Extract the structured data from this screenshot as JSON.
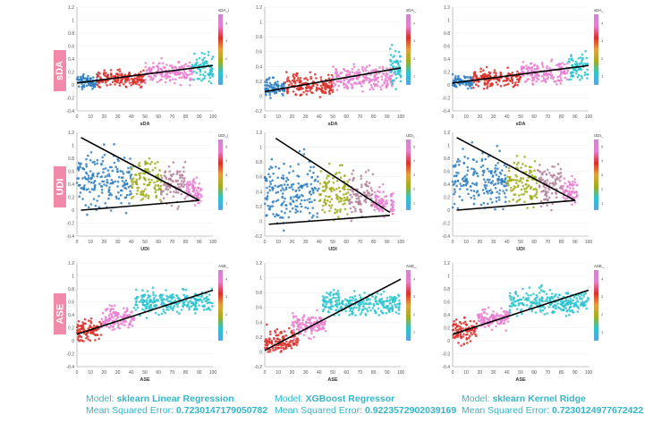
{
  "row_labels": [
    "sDA",
    "UDI",
    "ASE"
  ],
  "captions": [
    {
      "model_prefix": "Model: ",
      "model_name": "sklearn Linear Regression",
      "mse_prefix": "Mean Squared Error: ",
      "mse_value": "0.7230147179050782"
    },
    {
      "model_prefix": "Model: ",
      "model_name": "XGBoost Regressor",
      "mse_prefix": "Mean Squared Error: ",
      "mse_value": "0.9223572902039169"
    },
    {
      "model_prefix": "Model: ",
      "model_name": "sklearn Kernel Ridge",
      "mse_prefix": "Mean Squared Error: ",
      "mse_value": "0.7230124977672422"
    }
  ],
  "colors": {
    "cluster_blue": "#2f7fbf",
    "cluster_red": "#d9302b",
    "cluster_pink": "#e77fd0",
    "cluster_cyan": "#2cc4cf",
    "cluster_olive": "#9fae1c",
    "cluster_mauve": "#b5829c",
    "fit_line": "#000000",
    "caption": "#35b5c8",
    "row_label_bg": "#f08aa8"
  },
  "chart_data": [
    {
      "id": "sda-linear",
      "type": "scatter",
      "row": 0,
      "col": 0,
      "xlabel": "sDA",
      "legend_title": "sDA_i",
      "legend_ticks": [
        "1",
        "2",
        "3",
        "4"
      ],
      "xlim": [
        0,
        100
      ],
      "ylim": [
        -0.4,
        1.2
      ],
      "xticks": [
        0,
        10,
        20,
        30,
        40,
        50,
        60,
        70,
        80,
        90,
        100
      ],
      "yticks": [
        -0.4,
        -0.2,
        0,
        0.2,
        0.4,
        0.6,
        0.8,
        1,
        1.2
      ],
      "clusters": [
        {
          "color": "cluster_blue",
          "x": [
            0,
            15
          ],
          "yc": 0.05,
          "spread": 0.1
        },
        {
          "color": "cluster_red",
          "x": [
            15,
            50
          ],
          "yc": 0.1,
          "spread": 0.12
        },
        {
          "color": "cluster_pink",
          "x": [
            50,
            85
          ],
          "yc": 0.2,
          "spread": 0.16
        },
        {
          "color": "cluster_cyan",
          "x": [
            85,
            100
          ],
          "yc": 0.25,
          "spread": 0.22
        }
      ],
      "lines": [
        {
          "x": [
            0,
            100
          ],
          "y": [
            0.03,
            0.3
          ]
        }
      ]
    },
    {
      "id": "sda-xgb",
      "type": "scatter",
      "row": 0,
      "col": 1,
      "xlabel": "sDA",
      "legend_title": "sDA_",
      "legend_ticks": [
        "1",
        "2",
        "3",
        "4"
      ],
      "xlim": [
        0,
        100
      ],
      "ylim": [
        -0.2,
        1.2
      ],
      "xticks": [
        0,
        10,
        20,
        30,
        40,
        50,
        60,
        70,
        80,
        90,
        100
      ],
      "yticks": [
        -0.2,
        0,
        0.2,
        0.4,
        0.6,
        0.8,
        1,
        1.2
      ],
      "clusters": [
        {
          "color": "cluster_blue",
          "x": [
            0,
            15
          ],
          "yc": 0.1,
          "spread": 0.12
        },
        {
          "color": "cluster_red",
          "x": [
            15,
            50
          ],
          "yc": 0.15,
          "spread": 0.14
        },
        {
          "color": "cluster_pink",
          "x": [
            50,
            95
          ],
          "yc": 0.25,
          "spread": 0.16
        },
        {
          "color": "cluster_cyan",
          "x": [
            92,
            100
          ],
          "yc": 0.4,
          "spread": 0.3
        }
      ],
      "lines": [
        {
          "x": [
            0,
            100
          ],
          "y": [
            0.06,
            0.38
          ]
        }
      ]
    },
    {
      "id": "sda-kernel",
      "type": "scatter",
      "row": 0,
      "col": 2,
      "xlabel": "sDA",
      "legend_title": "sDA_",
      "legend_ticks": [
        "1",
        "2",
        "3",
        "4"
      ],
      "xlim": [
        0,
        100
      ],
      "ylim": [
        -0.4,
        1.2
      ],
      "xticks": [
        0,
        10,
        20,
        30,
        40,
        50,
        60,
        70,
        80,
        90,
        100
      ],
      "yticks": [
        -0.4,
        -0.2,
        0,
        0.2,
        0.4,
        0.6,
        0.8,
        1,
        1.2
      ],
      "clusters": [
        {
          "color": "cluster_blue",
          "x": [
            0,
            15
          ],
          "yc": 0.05,
          "spread": 0.1
        },
        {
          "color": "cluster_red",
          "x": [
            15,
            50
          ],
          "yc": 0.1,
          "spread": 0.12
        },
        {
          "color": "cluster_pink",
          "x": [
            50,
            85
          ],
          "yc": 0.2,
          "spread": 0.16
        },
        {
          "color": "cluster_cyan",
          "x": [
            85,
            100
          ],
          "yc": 0.25,
          "spread": 0.22
        }
      ],
      "lines": [
        {
          "x": [
            0,
            100
          ],
          "y": [
            0.03,
            0.3
          ]
        }
      ]
    },
    {
      "id": "udi-linear",
      "type": "scatter",
      "row": 1,
      "col": 0,
      "xlabel": "UDI",
      "legend_title": "UDI_i",
      "legend_ticks": [
        "1",
        "2",
        "3",
        "4",
        "5"
      ],
      "xlim": [
        0,
        100
      ],
      "ylim": [
        -0.4,
        1.2
      ],
      "xticks": [
        0,
        10,
        20,
        30,
        40,
        50,
        60,
        70,
        80,
        90,
        100
      ],
      "yticks": [
        -0.4,
        -0.2,
        0,
        0.2,
        0.4,
        0.6,
        0.8,
        1,
        1.2
      ],
      "clusters": [
        {
          "color": "cluster_blue",
          "x": [
            0,
            40
          ],
          "yc": 0.45,
          "spread": 0.4
        },
        {
          "color": "cluster_olive",
          "x": [
            40,
            62
          ],
          "yc": 0.45,
          "spread": 0.35
        },
        {
          "color": "cluster_mauve",
          "x": [
            62,
            80
          ],
          "yc": 0.4,
          "spread": 0.3
        },
        {
          "color": "cluster_pink",
          "x": [
            80,
            92
          ],
          "yc": 0.3,
          "spread": 0.2
        }
      ],
      "lines": [
        {
          "x": [
            3,
            90
          ],
          "y": [
            1.12,
            0.15
          ]
        },
        {
          "x": [
            3,
            90
          ],
          "y": [
            0.0,
            0.15
          ]
        }
      ]
    },
    {
      "id": "udi-xgb",
      "type": "scatter",
      "row": 1,
      "col": 1,
      "xlabel": "UDI",
      "legend_title": "UDI_",
      "legend_ticks": [
        "1",
        "2",
        "3",
        "4",
        "5"
      ],
      "xlim": [
        0,
        100
      ],
      "ylim": [
        -0.2,
        1.2
      ],
      "xticks": [
        0,
        10,
        20,
        30,
        40,
        50,
        60,
        70,
        80,
        90,
        100
      ],
      "yticks": [
        -0.2,
        0,
        0.2,
        0.4,
        0.6,
        0.8,
        1,
        1.2
      ],
      "clusters": [
        {
          "color": "cluster_blue",
          "x": [
            0,
            40
          ],
          "yc": 0.4,
          "spread": 0.4
        },
        {
          "color": "cluster_olive",
          "x": [
            40,
            62
          ],
          "yc": 0.4,
          "spread": 0.35
        },
        {
          "color": "cluster_mauve",
          "x": [
            62,
            80
          ],
          "yc": 0.35,
          "spread": 0.3
        },
        {
          "color": "cluster_pink",
          "x": [
            80,
            95
          ],
          "yc": 0.25,
          "spread": 0.2
        }
      ],
      "lines": [
        {
          "x": [
            8,
            92
          ],
          "y": [
            1.12,
            0.12
          ]
        },
        {
          "x": [
            3,
            92
          ],
          "y": [
            -0.04,
            0.08
          ]
        }
      ]
    },
    {
      "id": "udi-kernel",
      "type": "scatter",
      "row": 1,
      "col": 2,
      "xlabel": "UDI",
      "legend_title": "UDI_",
      "legend_ticks": [
        "1",
        "2",
        "3",
        "4",
        "5"
      ],
      "xlim": [
        0,
        100
      ],
      "ylim": [
        -0.4,
        1.2
      ],
      "xticks": [
        0,
        10,
        20,
        30,
        40,
        50,
        60,
        70,
        80,
        90,
        100
      ],
      "yticks": [
        -0.4,
        -0.2,
        0,
        0.2,
        0.4,
        0.6,
        0.8,
        1,
        1.2
      ],
      "clusters": [
        {
          "color": "cluster_blue",
          "x": [
            0,
            40
          ],
          "yc": 0.45,
          "spread": 0.4
        },
        {
          "color": "cluster_olive",
          "x": [
            40,
            62
          ],
          "yc": 0.45,
          "spread": 0.35
        },
        {
          "color": "cluster_mauve",
          "x": [
            62,
            80
          ],
          "yc": 0.4,
          "spread": 0.3
        },
        {
          "color": "cluster_pink",
          "x": [
            80,
            92
          ],
          "yc": 0.3,
          "spread": 0.2
        }
      ],
      "lines": [
        {
          "x": [
            3,
            90
          ],
          "y": [
            1.12,
            0.15
          ]
        },
        {
          "x": [
            3,
            90
          ],
          "y": [
            0.0,
            0.15
          ]
        }
      ]
    },
    {
      "id": "ase-linear",
      "type": "scatter",
      "row": 2,
      "col": 0,
      "xlabel": "ASE",
      "legend_title": "ASE_",
      "legend_ticks": [
        "1",
        "2",
        "3",
        "4"
      ],
      "xlim": [
        0,
        100
      ],
      "ylim": [
        -0.4,
        1.2
      ],
      "xticks": [
        0,
        10,
        20,
        30,
        40,
        50,
        60,
        70,
        80,
        90,
        100
      ],
      "yticks": [
        -0.4,
        -0.2,
        0,
        0.2,
        0.4,
        0.6,
        0.8,
        1,
        1.2
      ],
      "clusters": [
        {
          "color": "cluster_red",
          "x": [
            0,
            18
          ],
          "yc": 0.15,
          "spread": 0.18
        },
        {
          "color": "cluster_pink",
          "x": [
            18,
            42
          ],
          "yc": 0.35,
          "spread": 0.16
        },
        {
          "color": "cluster_cyan",
          "x": [
            42,
            100
          ],
          "yc": 0.6,
          "spread": 0.18
        }
      ],
      "lines": [
        {
          "x": [
            0,
            100
          ],
          "y": [
            0.1,
            0.78
          ]
        }
      ]
    },
    {
      "id": "ase-xgb",
      "type": "scatter",
      "row": 2,
      "col": 1,
      "xlabel": "ASE",
      "legend_title": "ASE_",
      "legend_ticks": [
        "1",
        "2",
        "3",
        "4"
      ],
      "xlim": [
        0,
        100
      ],
      "ylim": [
        -0.2,
        1.2
      ],
      "xticks": [
        0,
        10,
        20,
        30,
        40,
        50,
        60,
        70,
        80,
        90,
        100
      ],
      "yticks": [
        -0.2,
        0,
        0.2,
        0.4,
        0.6,
        0.8,
        1,
        1.2
      ],
      "clusters": [
        {
          "color": "cluster_red",
          "x": [
            0,
            25
          ],
          "yc": 0.15,
          "spread": 0.15
        },
        {
          "color": "cluster_pink",
          "x": [
            20,
            45
          ],
          "yc": 0.35,
          "spread": 0.14
        },
        {
          "color": "cluster_cyan",
          "x": [
            42,
            100
          ],
          "yc": 0.65,
          "spread": 0.16
        }
      ],
      "lines": [
        {
          "x": [
            0,
            100
          ],
          "y": [
            0.02,
            0.98
          ]
        }
      ]
    },
    {
      "id": "ase-kernel",
      "type": "scatter",
      "row": 2,
      "col": 2,
      "xlabel": "ASE",
      "legend_title": "ASE_",
      "legend_ticks": [
        "1",
        "2",
        "3",
        "4"
      ],
      "xlim": [
        0,
        100
      ],
      "ylim": [
        -0.4,
        1.2
      ],
      "xticks": [
        0,
        10,
        20,
        30,
        40,
        50,
        60,
        70,
        80,
        90,
        100
      ],
      "yticks": [
        -0.4,
        -0.2,
        0,
        0.2,
        0.4,
        0.6,
        0.8,
        1,
        1.2
      ],
      "clusters": [
        {
          "color": "cluster_red",
          "x": [
            0,
            18
          ],
          "yc": 0.15,
          "spread": 0.18
        },
        {
          "color": "cluster_pink",
          "x": [
            18,
            42
          ],
          "yc": 0.35,
          "spread": 0.16
        },
        {
          "color": "cluster_cyan",
          "x": [
            42,
            100
          ],
          "yc": 0.6,
          "spread": 0.18
        }
      ],
      "lines": [
        {
          "x": [
            0,
            100
          ],
          "y": [
            0.1,
            0.78
          ]
        }
      ]
    }
  ]
}
